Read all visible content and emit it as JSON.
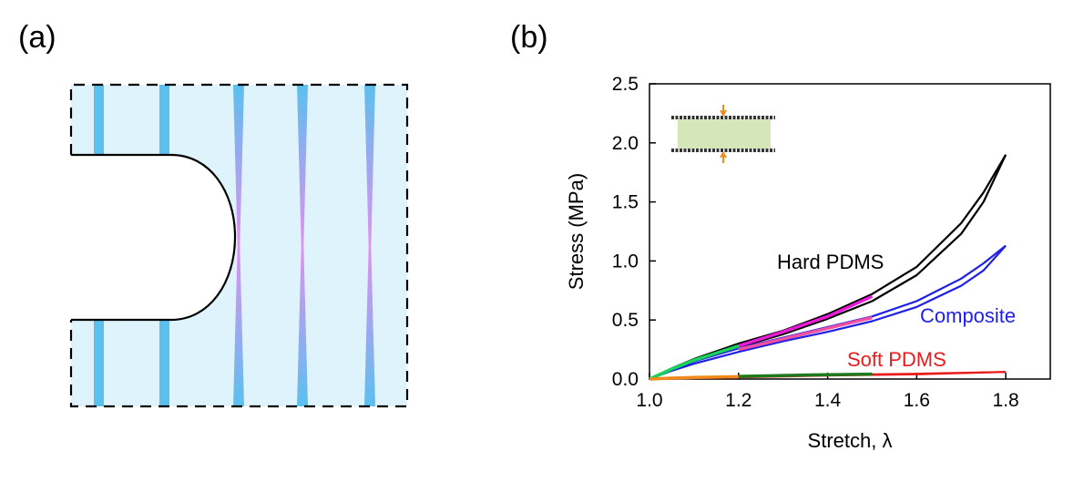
{
  "panel_labels": {
    "a": "(a)",
    "b": "(b)"
  },
  "diagram": {
    "fill_color": "#dff3fc",
    "stripe_color": "#5bc0ee",
    "highlight_color": "#e28ff0",
    "outline_color": "#000000"
  },
  "chart_data": {
    "type": "line",
    "xlabel": "Stretch, λ",
    "ylabel": "Stress (MPa)",
    "xlim": [
      1.0,
      1.9
    ],
    "ylim": [
      0.0,
      2.5
    ],
    "xticks": [
      "1.0",
      "1.2",
      "1.4",
      "1.6",
      "1.8"
    ],
    "yticks": [
      "0.0",
      "0.5",
      "1.0",
      "1.5",
      "2.0",
      "2.5"
    ],
    "grid": false,
    "legend": "none",
    "series": [
      {
        "name": "Hard PDMS",
        "color": "#000000",
        "x": [
          1.0,
          1.05,
          1.1,
          1.2,
          1.3,
          1.4,
          1.5,
          1.6,
          1.7,
          1.75,
          1.8
        ],
        "y": [
          0.0,
          0.09,
          0.17,
          0.3,
          0.41,
          0.55,
          0.72,
          0.95,
          1.32,
          1.58,
          1.9
        ],
        "y_unload": [
          0.0,
          0.08,
          0.15,
          0.27,
          0.38,
          0.51,
          0.66,
          0.88,
          1.23,
          1.5,
          1.9
        ]
      },
      {
        "name": "Composite",
        "color": "#1f1fe6",
        "x": [
          1.0,
          1.05,
          1.1,
          1.2,
          1.3,
          1.4,
          1.5,
          1.6,
          1.7,
          1.75,
          1.8
        ],
        "y": [
          0.0,
          0.08,
          0.15,
          0.26,
          0.35,
          0.44,
          0.53,
          0.66,
          0.85,
          0.98,
          1.13
        ],
        "y_unload": [
          0.0,
          0.07,
          0.13,
          0.23,
          0.32,
          0.4,
          0.49,
          0.61,
          0.79,
          0.92,
          1.13
        ]
      },
      {
        "name": "Soft PDMS",
        "color": "#e81c1c",
        "x": [
          1.0,
          1.2,
          1.4,
          1.6,
          1.8
        ],
        "y": [
          0.0,
          0.02,
          0.035,
          0.045,
          0.06
        ],
        "y_unload": [
          0.0,
          0.015,
          0.03,
          0.04,
          0.06
        ]
      }
    ],
    "overlays": [
      {
        "color": "#18d55a",
        "x": [
          1.0,
          1.05,
          1.1,
          1.15,
          1.2
        ],
        "y": [
          0.0,
          0.085,
          0.16,
          0.22,
          0.28
        ]
      },
      {
        "color": "#e81cd6",
        "x": [
          1.2,
          1.3,
          1.4,
          1.5
        ],
        "y": [
          0.28,
          0.4,
          0.53,
          0.7
        ]
      },
      {
        "color": "#f04fa0",
        "x": [
          1.2,
          1.3,
          1.4,
          1.5
        ],
        "y": [
          0.25,
          0.34,
          0.43,
          0.52
        ]
      },
      {
        "color": "#f08a1c",
        "x": [
          1.0,
          1.05,
          1.1,
          1.2
        ],
        "y": [
          0.0,
          0.008,
          0.014,
          0.02
        ]
      },
      {
        "color": "#1f7a1f",
        "x": [
          1.2,
          1.3,
          1.4,
          1.5
        ],
        "y": [
          0.022,
          0.03,
          0.037,
          0.042
        ]
      }
    ]
  },
  "inset": {
    "fill_color": "#d5e6b8",
    "arrow_color": "#f08a1c"
  }
}
